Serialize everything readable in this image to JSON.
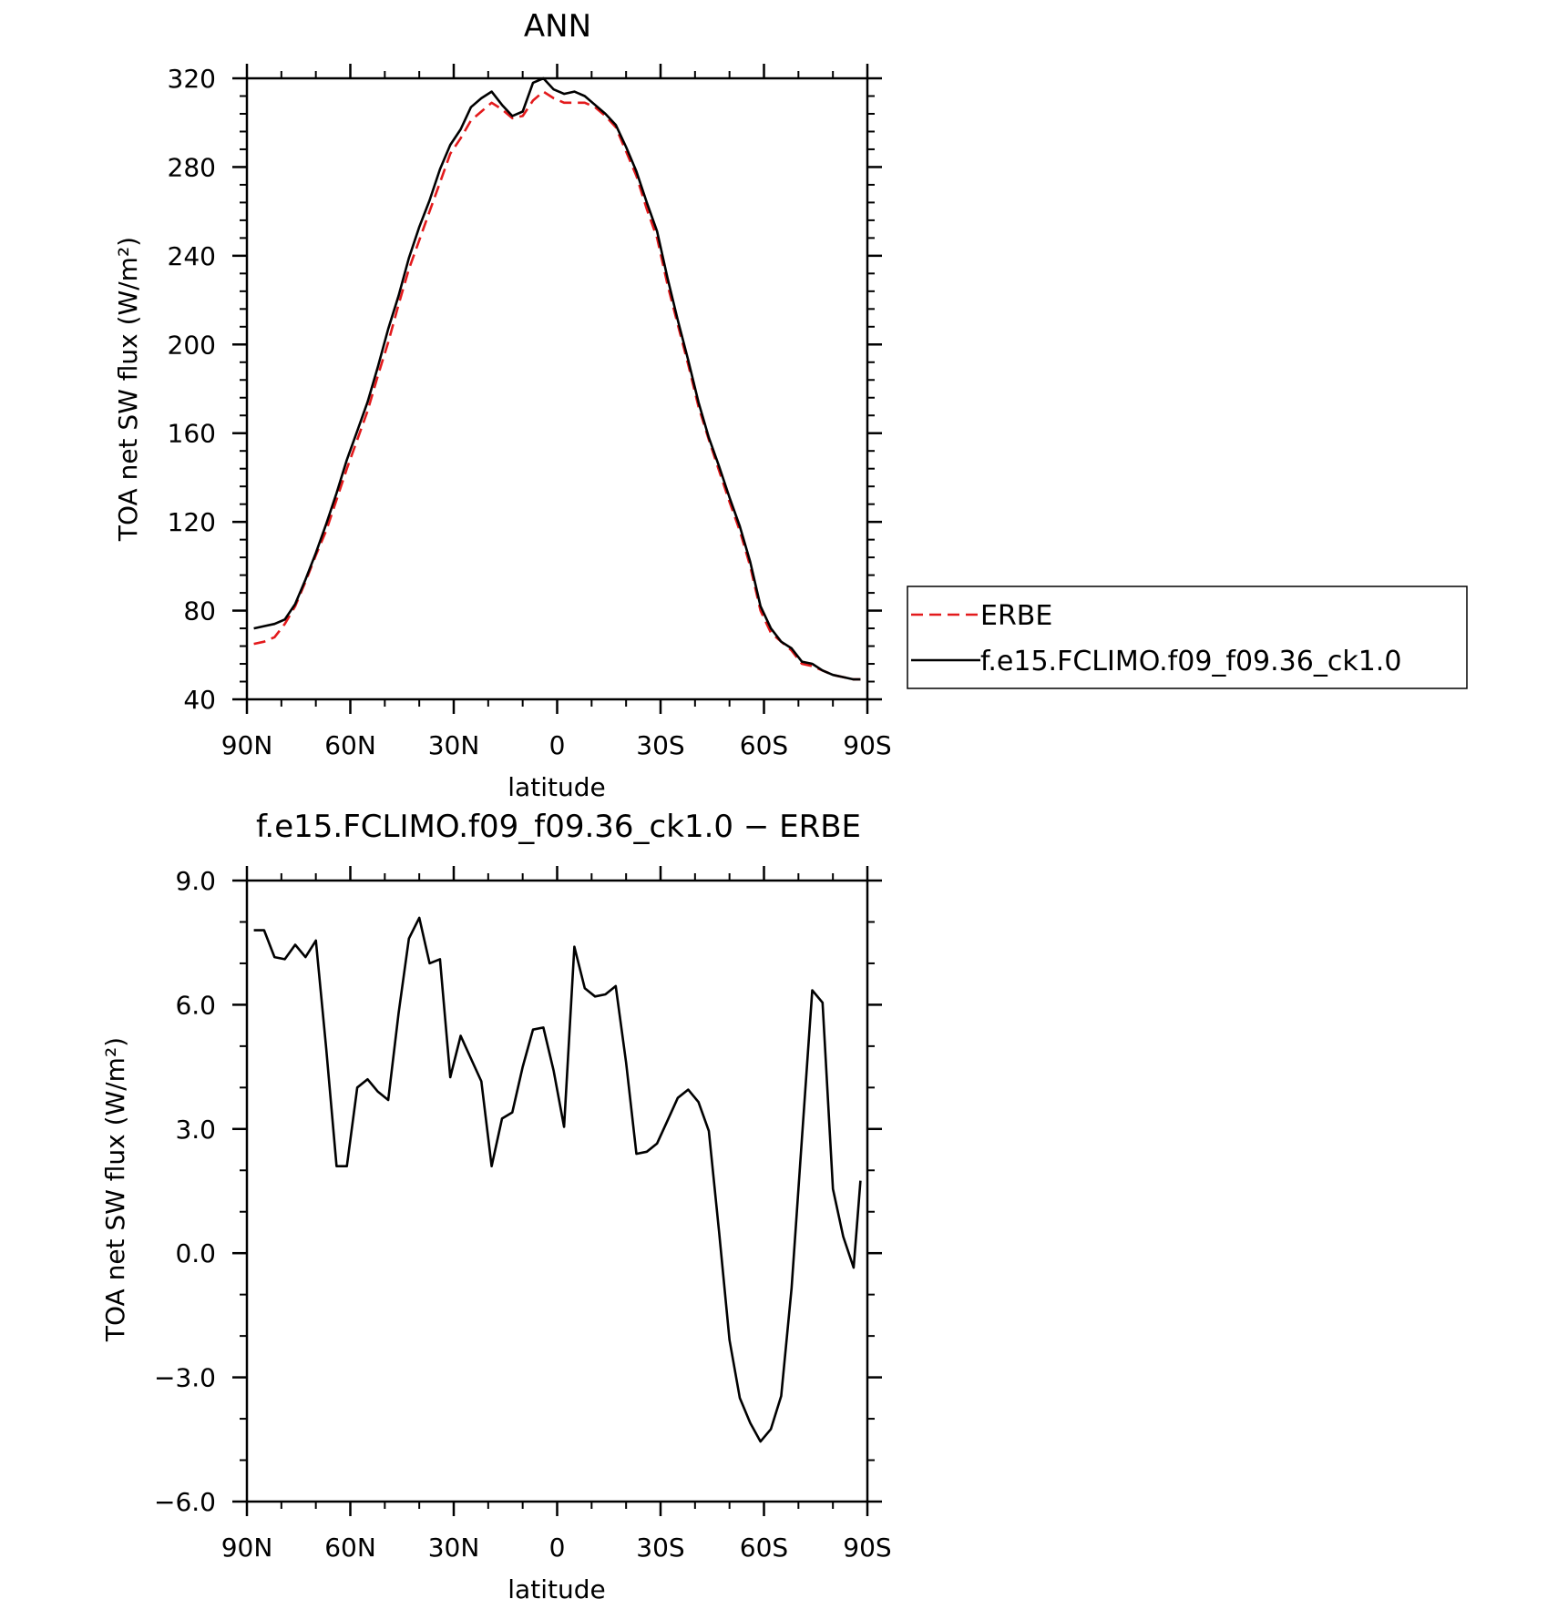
{
  "chart_data": [
    {
      "type": "line",
      "title": "ANN",
      "xlabel": "latitude",
      "ylabel": "TOA net SW flux (W/m²)",
      "ylim": [
        40,
        320
      ],
      "xlim": [
        -90,
        90
      ],
      "x_ticks": [
        {
          "value": -90,
          "label": "90N"
        },
        {
          "value": -60,
          "label": "60N"
        },
        {
          "value": -30,
          "label": "30N"
        },
        {
          "value": 0,
          "label": "0"
        },
        {
          "value": 30,
          "label": "30S"
        },
        {
          "value": 60,
          "label": "60S"
        },
        {
          "value": 90,
          "label": "90S"
        }
      ],
      "y_ticks": [
        {
          "value": 320,
          "label": "320"
        },
        {
          "value": 280,
          "label": "280"
        },
        {
          "value": 240,
          "label": "240"
        },
        {
          "value": 200,
          "label": "200"
        },
        {
          "value": 160,
          "label": "160"
        },
        {
          "value": 120,
          "label": "120"
        },
        {
          "value": 80,
          "label": "80"
        },
        {
          "value": 40,
          "label": "40"
        }
      ],
      "legend": {
        "placement": "right",
        "entries": [
          {
            "name": "ERBE",
            "color": "#e31a1c",
            "style": "dashed"
          },
          {
            "name": "f.e15.FCLIMO.f09_f09.36_ck1.0",
            "color": "#000000",
            "style": "solid"
          }
        ]
      },
      "series": [
        {
          "name": "ERBE",
          "color": "#e31a1c",
          "dash": true,
          "x": [
            -88,
            -85,
            -82,
            -79,
            -76,
            -73,
            -70,
            -67,
            -64,
            -61,
            -58,
            -55,
            -52,
            -49,
            -46,
            -43,
            -40,
            -37,
            -34,
            -31,
            -28,
            -25,
            -22,
            -19,
            -16,
            -13,
            -10,
            -7,
            -4,
            -1,
            2,
            5,
            8,
            11,
            14,
            17,
            20,
            23,
            26,
            29,
            32,
            35,
            38,
            41,
            44,
            47,
            50,
            53,
            56,
            59,
            62,
            65,
            68,
            71,
            74,
            77,
            80,
            83,
            86,
            88
          ],
          "values": [
            65,
            66,
            68,
            74,
            82,
            93,
            105,
            116,
            130,
            144,
            157,
            170,
            186,
            201,
            218,
            234,
            247,
            260,
            273,
            286,
            293,
            301,
            305,
            309,
            306,
            302,
            303,
            310,
            314,
            311,
            309,
            309,
            309,
            307,
            303,
            298,
            287,
            276,
            261,
            248,
            227,
            209,
            191,
            172,
            157,
            143,
            129,
            116,
            100,
            80,
            70,
            66,
            62,
            56,
            55,
            53,
            51,
            50,
            49,
            49
          ]
        },
        {
          "name": "f.e15.FCLIMO.f09_f09.36_ck1.0",
          "color": "#000000",
          "dash": false,
          "x": [
            -88,
            -85,
            -82,
            -79,
            -76,
            -73,
            -70,
            -67,
            -64,
            -61,
            -58,
            -55,
            -52,
            -49,
            -46,
            -43,
            -40,
            -37,
            -34,
            -31,
            -28,
            -25,
            -22,
            -19,
            -16,
            -13,
            -10,
            -7,
            -4,
            -1,
            2,
            5,
            8,
            11,
            14,
            17,
            20,
            23,
            26,
            29,
            32,
            35,
            38,
            41,
            44,
            47,
            50,
            53,
            56,
            59,
            62,
            65,
            68,
            71,
            74,
            77,
            80,
            83,
            86,
            88
          ],
          "values": [
            72,
            73,
            74,
            76,
            83,
            94,
            106,
            119,
            133,
            148,
            161,
            174,
            190,
            207,
            222,
            239,
            253,
            265,
            279,
            290,
            297,
            307,
            311,
            314,
            308,
            303,
            305,
            318,
            320,
            315,
            313,
            314,
            312,
            308,
            304,
            299,
            289,
            278,
            264,
            251,
            230,
            211,
            193,
            174,
            158,
            145,
            131,
            118,
            102,
            82,
            72,
            66,
            63,
            57,
            56,
            53,
            51,
            50,
            49,
            49
          ]
        }
      ]
    },
    {
      "type": "line",
      "title": "f.e15.FCLIMO.f09_f09.36_ck1.0 − ERBE",
      "xlabel": "latitude",
      "ylabel": "TOA net SW flux (W/m²)",
      "ylim": [
        -6.0,
        9.0
      ],
      "xlim": [
        -90,
        90
      ],
      "x_ticks": [
        {
          "value": -90,
          "label": "90N"
        },
        {
          "value": -60,
          "label": "60N"
        },
        {
          "value": -30,
          "label": "30N"
        },
        {
          "value": 0,
          "label": "0"
        },
        {
          "value": 30,
          "label": "30S"
        },
        {
          "value": 60,
          "label": "60S"
        },
        {
          "value": 90,
          "label": "90S"
        }
      ],
      "y_ticks": [
        {
          "value": 9.0,
          "label": "9.0"
        },
        {
          "value": 6.0,
          "label": "6.0"
        },
        {
          "value": 3.0,
          "label": "3.0"
        },
        {
          "value": 0.0,
          "label": "0.0"
        },
        {
          "value": -3.0,
          "label": "−3.0"
        },
        {
          "value": -6.0,
          "label": "−6.0"
        }
      ],
      "series": [
        {
          "color": "#000000",
          "dash": false,
          "x": [
            -88,
            -85,
            -82,
            -79,
            -76,
            -73,
            -70,
            -67,
            -64,
            -61,
            -58,
            -55,
            -52,
            -49,
            -46,
            -43,
            -40,
            -37,
            -34,
            -31,
            -28,
            -25,
            -22,
            -19,
            -16,
            -13,
            -10,
            -7,
            -4,
            -1,
            2,
            5,
            8,
            11,
            14,
            17,
            20,
            23,
            26,
            29,
            32,
            35,
            38,
            41,
            44,
            47,
            50,
            53,
            56,
            59,
            62,
            65,
            68,
            71,
            74,
            77,
            80,
            83,
            86,
            88
          ],
          "values": [
            7.8,
            7.8,
            7.15,
            7.1,
            7.45,
            7.15,
            7.55,
            4.95,
            2.1,
            2.1,
            4.0,
            4.2,
            3.9,
            3.7,
            5.8,
            7.6,
            8.1,
            7.0,
            7.1,
            4.25,
            5.25,
            4.7,
            4.15,
            2.1,
            3.25,
            3.4,
            4.5,
            5.4,
            5.45,
            4.4,
            3.05,
            7.4,
            6.4,
            6.2,
            6.25,
            6.45,
            4.6,
            2.4,
            2.45,
            2.65,
            3.2,
            3.75,
            3.95,
            3.65,
            2.95,
            0.5,
            -2.1,
            -3.5,
            -4.1,
            -4.55,
            -4.25,
            -3.45,
            -0.85,
            2.75,
            6.35,
            6.05,
            1.55,
            0.4,
            -0.35,
            1.75
          ]
        }
      ]
    }
  ]
}
